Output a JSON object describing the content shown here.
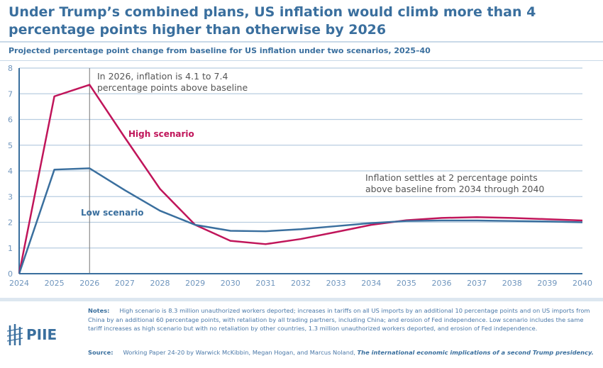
{
  "title": "Under Trump’s combined plans, US inflation would climb more than 4 percentage points higher than otherwise by 2026",
  "subtitle": "Projected percentage point change from baseline for US inflation under two scenarios, 2025–40",
  "chart_data": {
    "type": "line",
    "title": "Under Trump’s combined plans, US inflation would climb more than 4 percentage points higher than otherwise by 2026",
    "xlabel": "",
    "ylabel": "",
    "x": [
      2024,
      2025,
      2026,
      2027,
      2028,
      2029,
      2030,
      2031,
      2032,
      2033,
      2034,
      2035,
      2036,
      2037,
      2038,
      2039,
      2040
    ],
    "xlim": [
      2024,
      2040
    ],
    "ylim": [
      0,
      8
    ],
    "yticks": [
      0,
      1,
      2,
      3,
      4,
      5,
      6,
      7,
      8
    ],
    "grid": "horizontal",
    "series": [
      {
        "name": "High scenario",
        "color": "#c0155a",
        "values": [
          0,
          6.9,
          7.35,
          5.3,
          3.3,
          1.9,
          1.28,
          1.15,
          1.35,
          1.62,
          1.9,
          2.08,
          2.17,
          2.2,
          2.17,
          2.12,
          2.07
        ]
      },
      {
        "name": "Low scenario",
        "color": "#3a6f9e",
        "values": [
          0,
          4.05,
          4.1,
          3.25,
          2.45,
          1.9,
          1.67,
          1.65,
          1.73,
          1.85,
          1.97,
          2.05,
          2.07,
          2.07,
          2.05,
          2.03,
          2.0
        ]
      }
    ],
    "annotations": [
      {
        "text1": "In 2026, inflation is 4.1 to 7.4",
        "text2": "percentage points above baseline",
        "x": 2026
      },
      {
        "text1": "Inflation settles at 2 percentage points",
        "text2": "above baseline from 2034 through 2040"
      }
    ]
  },
  "notes_label": "Notes:",
  "notes": "High scenario is 8.3 million unauthorized workers deported; increases in tariffs on all US imports by an additional 10 percentage points and on US imports from China by an additional 60 percentage points, with retaliation by all trading partners, including China; and erosion of Fed independence. Low scenario includes the same tariff increases as high scenario but with no retaliation by other countries, 1.3 million unauthorized workers deported, and erosion of Fed independence.",
  "source_label": "Source:",
  "source": "Working Paper 24-20 by Warwick McKibbin, Megan Hogan, and Marcus Noland,",
  "source_title": "The international economic implications of a second Trump presidency.",
  "logo": "PIIE",
  "colors": {
    "brand": "#3a6f9e",
    "high": "#c0155a"
  }
}
